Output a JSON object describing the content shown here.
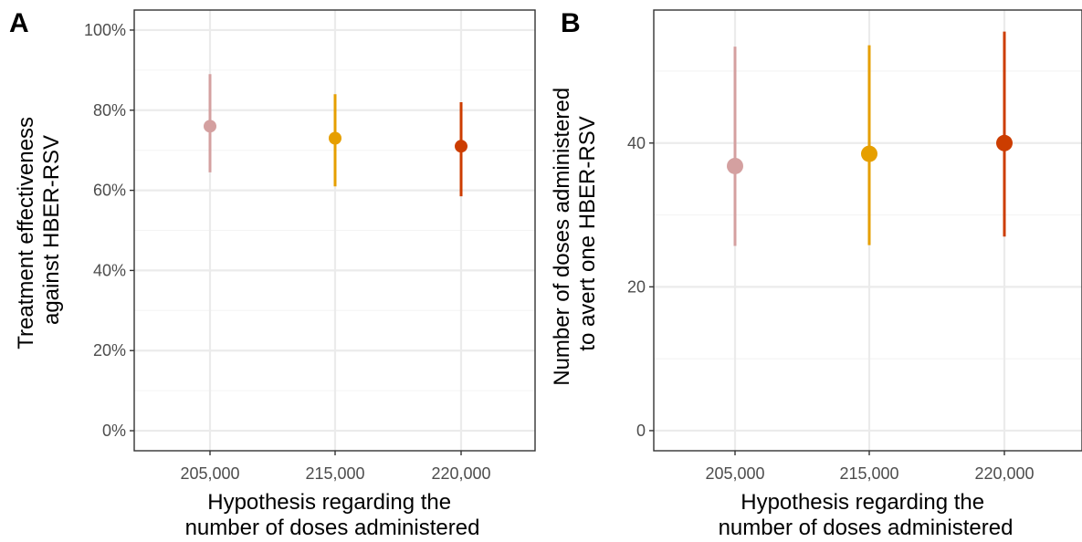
{
  "chart_data": [
    {
      "panel": "A",
      "type": "scatter",
      "title": "",
      "xlabel": [
        "Hypothesis regarding the",
        "number of doses administered"
      ],
      "ylabel": [
        "Treatment effectiveness",
        "against HBER-RSV"
      ],
      "categories": [
        "205,000",
        "215,000",
        "220,000"
      ],
      "points": [
        {
          "x": "205,000",
          "y": 76,
          "lower": 64.5,
          "upper": 89,
          "color": "#D4A0A0"
        },
        {
          "x": "215,000",
          "y": 73,
          "lower": 61,
          "upper": 84,
          "color": "#E69F00"
        },
        {
          "x": "220,000",
          "y": 71,
          "lower": 58.5,
          "upper": 82,
          "color": "#CC3D00"
        }
      ],
      "ylim": [
        -5,
        105
      ],
      "yticks": [
        0,
        20,
        40,
        60,
        80,
        100
      ],
      "ytick_labels": [
        "0%",
        "20%",
        "40%",
        "60%",
        "80%",
        "100%"
      ],
      "grid": true,
      "legend": "none"
    },
    {
      "panel": "B",
      "type": "scatter",
      "title": "",
      "xlabel": [
        "Hypothesis regarding the",
        "number of doses administered"
      ],
      "ylabel": [
        "Number of doses administered",
        "to avert one HBER-RSV"
      ],
      "categories": [
        "205,000",
        "215,000",
        "220,000"
      ],
      "points": [
        {
          "x": "205,000",
          "y": 36.8,
          "lower": 25.7,
          "upper": 53.4,
          "color": "#D4A0A0"
        },
        {
          "x": "215,000",
          "y": 38.5,
          "lower": 25.8,
          "upper": 53.6,
          "color": "#E69F00"
        },
        {
          "x": "220,000",
          "y": 40,
          "lower": 27,
          "upper": 55.5,
          "color": "#CC3D00"
        }
      ],
      "ylim": [
        -2.8,
        58.5
      ],
      "yticks": [
        0,
        20,
        40
      ],
      "ytick_labels": [
        "0",
        "20",
        "40"
      ],
      "grid": true,
      "legend": "none"
    }
  ],
  "style": {
    "panel_border": "#333333",
    "grid_major": "#EBEBEB",
    "grid_minor": "#F4F4F4",
    "tick_color": "#333333"
  }
}
